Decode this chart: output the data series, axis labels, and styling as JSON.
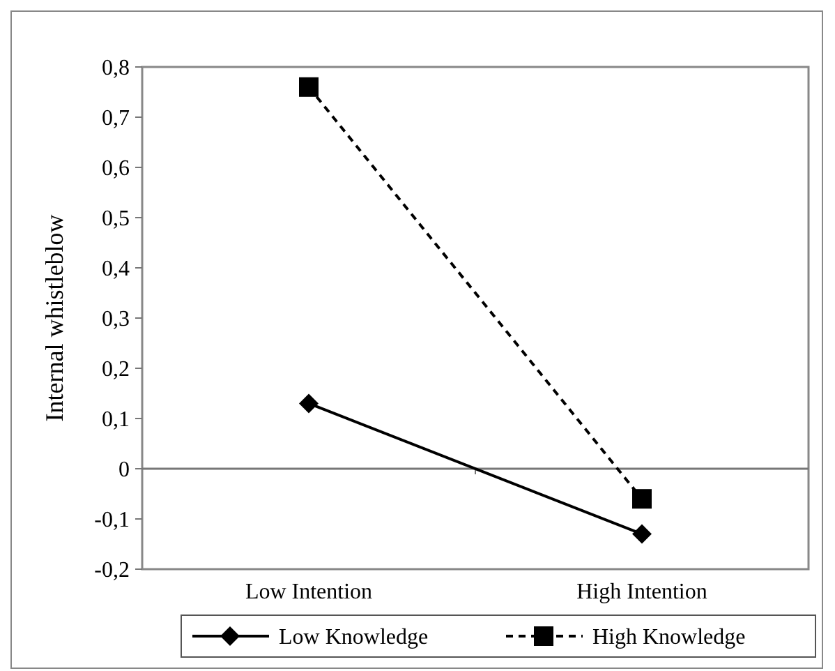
{
  "chart_data": {
    "type": "line",
    "ylabel": "Internal whistleblow",
    "categories": [
      "Low Intention",
      "High Intention"
    ],
    "series": [
      {
        "name": "Low Knowledge",
        "color": "#000000",
        "values": [
          0.13,
          -0.13
        ],
        "marker": "diamond",
        "line_style": "solid"
      },
      {
        "name": "High Knowledge",
        "color": "#000000",
        "values": [
          0.76,
          -0.06
        ],
        "marker": "square",
        "line_style": "dashed"
      }
    ],
    "ylim": [
      -0.2,
      0.8
    ],
    "yticks": [
      {
        "value": -0.2,
        "label": "-0,2"
      },
      {
        "value": -0.1,
        "label": "-0,1"
      },
      {
        "value": 0,
        "label": "0"
      },
      {
        "value": 0.1,
        "label": "0,1"
      },
      {
        "value": 0.2,
        "label": "0,2"
      },
      {
        "value": 0.3,
        "label": "0,3"
      },
      {
        "value": 0.4,
        "label": "0,4"
      },
      {
        "value": 0.5,
        "label": "0,5"
      },
      {
        "value": 0.6,
        "label": "0,6"
      },
      {
        "value": 0.7,
        "label": "0,7"
      },
      {
        "value": 0.8,
        "label": "0,8"
      }
    ],
    "legend": "bottom"
  }
}
